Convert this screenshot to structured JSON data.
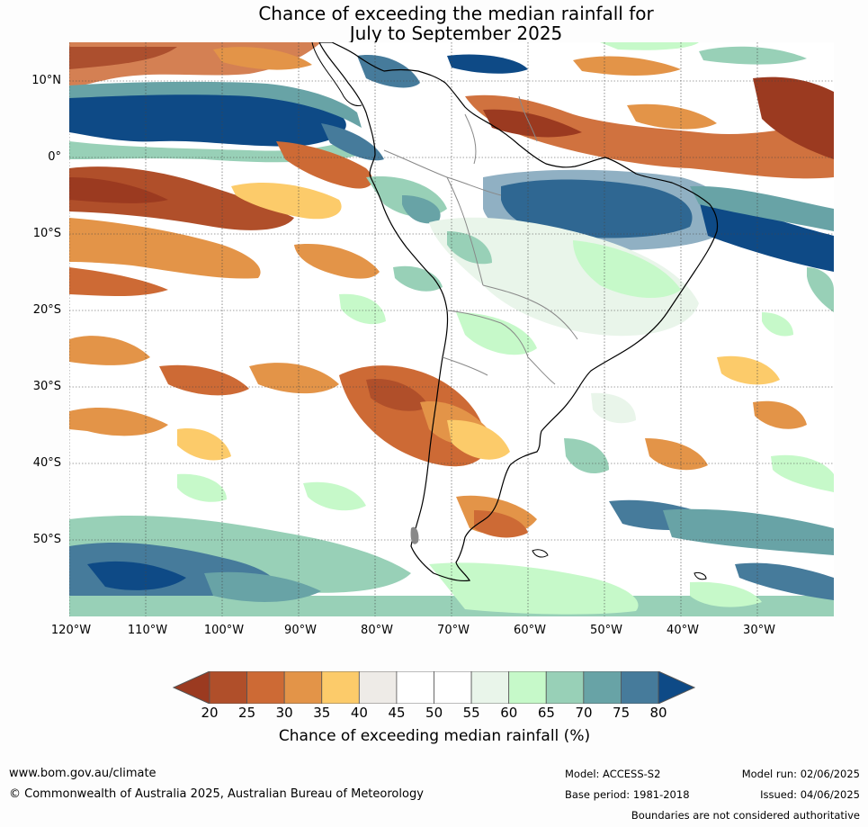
{
  "title": {
    "line1": "Chance of exceeding the median rainfall for",
    "line2": "July to September 2025"
  },
  "map": {
    "lat_labels": [
      "10°N",
      "0°",
      "10°S",
      "20°S",
      "30°S",
      "40°S",
      "50°S"
    ],
    "lon_labels": [
      "120°W",
      "110°W",
      "100°W",
      "90°W",
      "80°W",
      "70°W",
      "60°W",
      "50°W",
      "40°W",
      "30°W"
    ]
  },
  "legend": {
    "ticks": [
      "20",
      "25",
      "30",
      "35",
      "40",
      "45",
      "50",
      "55",
      "60",
      "65",
      "70",
      "75",
      "80"
    ],
    "colors": [
      "#9b3a20",
      "#b04f2a",
      "#cd6a35",
      "#e39448",
      "#fccb6a",
      "#eeebe7",
      "#ffffff",
      "#ffffff",
      "#e9f5ea",
      "#c6f9c9",
      "#98d0b7",
      "#68a3a6",
      "#467b9b",
      "#0e4a86"
    ],
    "title": "Chance of exceeding median rainfall (%)"
  },
  "footer": {
    "website": "www.bom.gov.au/climate",
    "copyright": "© Commonwealth of Australia 2025, Australian Bureau of Meteorology",
    "model": "Model: ACCESS-S2",
    "base_period": "Base period: 1981-2018",
    "model_run": "Model run: 02/06/2025",
    "issued": "Issued: 04/06/2025",
    "disclaimer": "Boundaries are not considered authoritative"
  }
}
